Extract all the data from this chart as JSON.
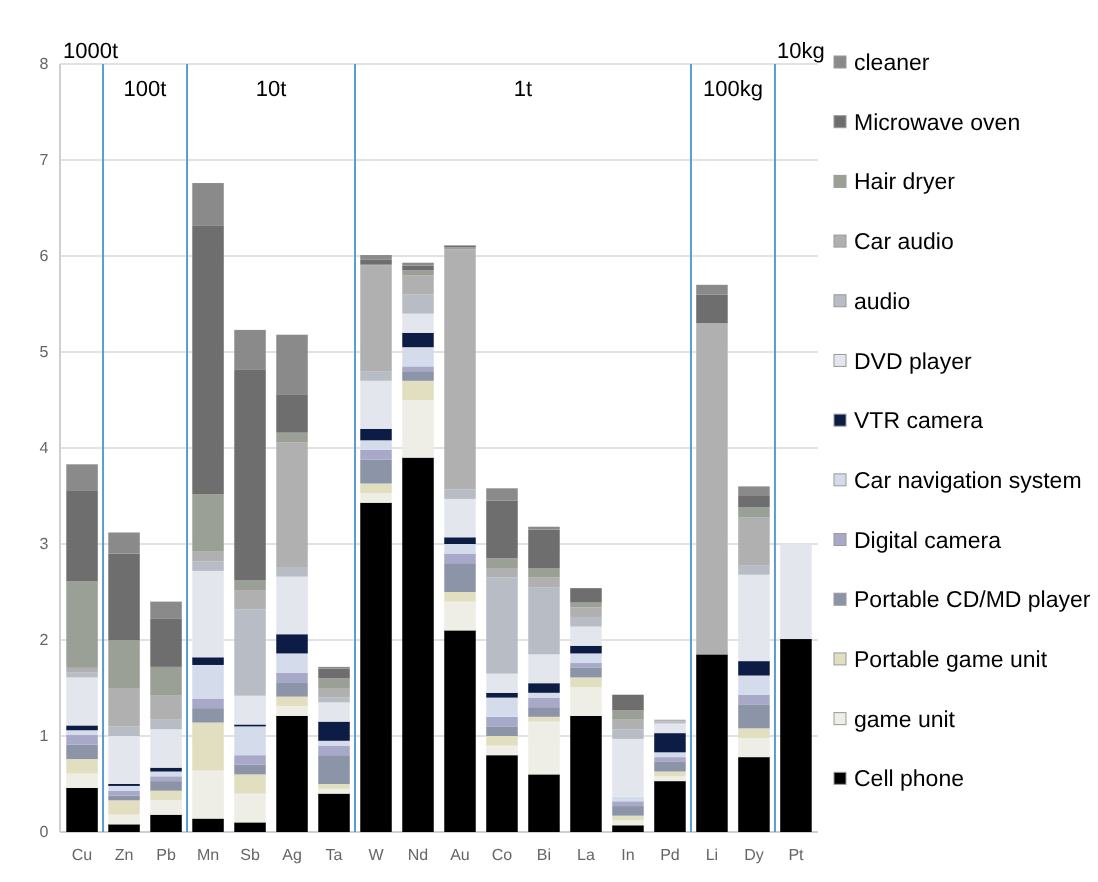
{
  "chart_data": {
    "type": "bar",
    "stacked": true,
    "categories": [
      "Cu",
      "Zn",
      "Pb",
      "Mn",
      "Sb",
      "Ag",
      "Ta",
      "W",
      "Nd",
      "Au",
      "Co",
      "Bi",
      "La",
      "In",
      "Pd",
      "Li",
      "Dy",
      "Pt"
    ],
    "ylim": [
      0,
      8
    ],
    "yticks": [
      0,
      1,
      2,
      3,
      4,
      5,
      6,
      7,
      8
    ],
    "grid": "y",
    "legend": "right",
    "annotations": [
      "1000t",
      "100t",
      "10t",
      "1t",
      "100kg",
      "10kg"
    ],
    "series": [
      {
        "name": "Cell phone",
        "color": "#000000",
        "values": [
          0.46,
          0.08,
          0.18,
          0.14,
          0.1,
          1.21,
          0.4,
          3.43,
          3.9,
          2.1,
          0.8,
          0.6,
          1.21,
          0.07,
          0.53,
          1.85,
          0.78,
          2.01
        ]
      },
      {
        "name": "game unit",
        "color": "#eeeee6",
        "values": [
          0.15,
          0.1,
          0.15,
          0.5,
          0.3,
          0.1,
          0.05,
          0.1,
          0.6,
          0.3,
          0.1,
          0.55,
          0.3,
          0.05,
          0.05,
          0,
          0.2,
          0
        ]
      },
      {
        "name": "Portable game unit",
        "color": "#e2dfc0",
        "values": [
          0.15,
          0.15,
          0.1,
          0.5,
          0.2,
          0.1,
          0.05,
          0.1,
          0.2,
          0.1,
          0.1,
          0.05,
          0.1,
          0.05,
          0.05,
          0,
          0.1,
          0
        ]
      },
      {
        "name": "Portable CD/MD player",
        "color": "#8c94a8",
        "values": [
          0.15,
          0.05,
          0.1,
          0.15,
          0.1,
          0.15,
          0.3,
          0.25,
          0.1,
          0.3,
          0.1,
          0.1,
          0.1,
          0.1,
          0.1,
          0,
          0.25,
          0
        ]
      },
      {
        "name": "Digital camera",
        "color": "#a8a8c8",
        "values": [
          0.1,
          0.05,
          0.05,
          0.1,
          0.1,
          0.1,
          0.1,
          0.1,
          0.05,
          0.1,
          0.1,
          0.1,
          0.05,
          0.05,
          0.05,
          0,
          0.1,
          0
        ]
      },
      {
        "name": "Car navigation system",
        "color": "#d4dcec",
        "values": [
          0.05,
          0.05,
          0.05,
          0.35,
          0.3,
          0.2,
          0.05,
          0.1,
          0.2,
          0.1,
          0.2,
          0.05,
          0.1,
          0.05,
          0.05,
          0,
          0.2,
          0
        ]
      },
      {
        "name": "VTR camera",
        "color": "#0c1c44",
        "values": [
          0.05,
          0.02,
          0.04,
          0.08,
          0.02,
          0.2,
          0.2,
          0.12,
          0.15,
          0.07,
          0.05,
          0.1,
          0.08,
          0,
          0.2,
          0,
          0.15,
          0
        ]
      },
      {
        "name": "DVD player",
        "color": "#e4e6ee",
        "values": [
          0.5,
          0.5,
          0.4,
          0.9,
          0.3,
          0.6,
          0.2,
          0.5,
          0.2,
          0.4,
          0.2,
          0.3,
          0.2,
          0.6,
          0.1,
          0,
          0.9,
          0.99
        ]
      },
      {
        "name": "audio",
        "color": "#b8bcc4",
        "values": [
          0.05,
          0.1,
          0.1,
          0.1,
          0.9,
          0.1,
          0.05,
          0.1,
          0.2,
          0.1,
          1.0,
          0.7,
          0.1,
          0.1,
          0.02,
          0,
          0.1,
          0
        ]
      },
      {
        "name": "Car audio",
        "color": "#b0b0b0",
        "values": [
          0.05,
          0.4,
          0.25,
          0.1,
          0.2,
          1.3,
          0.1,
          1.1,
          0.2,
          2.5,
          0.1,
          0.1,
          0.1,
          0.1,
          0.02,
          3.45,
          0.5,
          0
        ]
      },
      {
        "name": "Hair dryer",
        "color": "#9aa096",
        "values": [
          0.9,
          0.5,
          0.3,
          0.6,
          0.1,
          0.1,
          0.1,
          0.01,
          0.05,
          0.02,
          0.1,
          0.1,
          0.05,
          0.1,
          0,
          0,
          0.1,
          0
        ]
      },
      {
        "name": "Microwave oven",
        "color": "#6e6e6e",
        "values": [
          0.95,
          0.9,
          0.5,
          2.8,
          2.2,
          0.4,
          0.1,
          0.05,
          0.05,
          0.02,
          0.6,
          0.4,
          0.15,
          0.16,
          0,
          0.3,
          0.12,
          0
        ]
      },
      {
        "name": "cleaner",
        "color": "#8a8a8a",
        "values": [
          0.27,
          0.22,
          0.18,
          0.44,
          0.41,
          0.62,
          0.02,
          0.05,
          0.03,
          0,
          0.13,
          0.03,
          0,
          0,
          0,
          0.1,
          0.1,
          0
        ]
      }
    ]
  }
}
